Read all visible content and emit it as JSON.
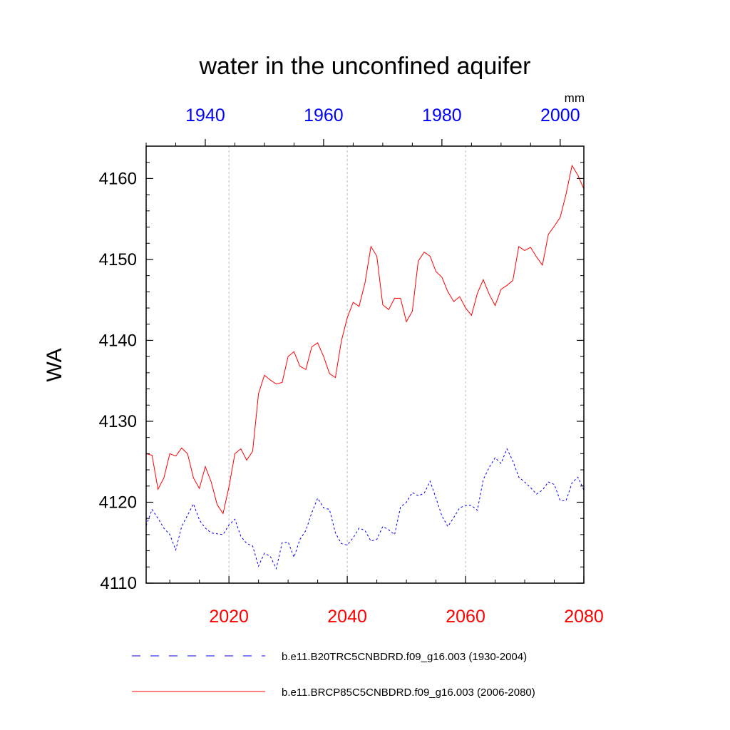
{
  "chart_data": {
    "type": "line",
    "title": "water in the unconfined aquifer",
    "ylabel": "WA",
    "units": "mm",
    "ylim": [
      4110,
      4164
    ],
    "yticks": [
      "4110",
      "4120",
      "4130",
      "4140",
      "4150",
      "4160"
    ],
    "x_bottom": {
      "range": [
        2006,
        2080
      ],
      "ticks": [
        "2020",
        "2040",
        "2060",
        "2080"
      ],
      "color": "#ff0000"
    },
    "x_top": {
      "range": [
        1930,
        2004
      ],
      "ticks": [
        "1940",
        "1960",
        "1980",
        "2000"
      ],
      "color": "#0000ff"
    },
    "grid_x_years_bottom": [
      2020,
      2040,
      2060
    ],
    "series": [
      {
        "name": "b.e11.B20TRC5CNBDRD.f09_g16.003 (1930-2004)",
        "color": "#0000ff",
        "dash": "dashed",
        "axis": "top",
        "x": [
          1930,
          1931,
          1932,
          1933,
          1934,
          1935,
          1936,
          1937,
          1938,
          1939,
          1940,
          1941,
          1942,
          1943,
          1944,
          1945,
          1946,
          1947,
          1948,
          1949,
          1950,
          1951,
          1952,
          1953,
          1954,
          1955,
          1956,
          1957,
          1958,
          1959,
          1960,
          1961,
          1962,
          1963,
          1964,
          1965,
          1966,
          1967,
          1968,
          1969,
          1970,
          1971,
          1972,
          1973,
          1974,
          1975,
          1976,
          1977,
          1978,
          1979,
          1980,
          1981,
          1982,
          1983,
          1984,
          1985,
          1986,
          1987,
          1988,
          1989,
          1990,
          1991,
          1992,
          1993,
          1994,
          1995,
          1996,
          1997,
          1998,
          1999,
          2000,
          2001,
          2002,
          2003,
          2004
        ],
        "values": [
          4117.1,
          4119.1,
          4118.0,
          4116.8,
          4116.0,
          4114.1,
          4117.0,
          4118.4,
          4119.8,
          4117.8,
          4116.8,
          4116.2,
          4116.1,
          4116.0,
          4117.2,
          4117.9,
          4115.8,
          4114.9,
          4114.6,
          4112.1,
          4113.7,
          4113.3,
          4111.8,
          4115.0,
          4115.1,
          4113.2,
          4115.4,
          4116.5,
          4118.7,
          4120.5,
          4119.3,
          4119.1,
          4116.2,
          4114.9,
          4114.7,
          4115.6,
          4116.8,
          4116.5,
          4115.2,
          4115.4,
          4117.0,
          4116.6,
          4116.0,
          4119.4,
          4120.0,
          4121.2,
          4120.8,
          4121.1,
          4122.6,
          4120.5,
          4118.3,
          4117.0,
          4118.1,
          4119.3,
          4119.6,
          4119.6,
          4119.0,
          4122.8,
          4124.3,
          4125.5,
          4124.8,
          4126.6,
          4125.1,
          4123.1,
          4122.5,
          4121.8,
          4121.0,
          4121.5,
          4122.5,
          4122.2,
          4120.2,
          4120.2,
          4122.4,
          4123.1,
          4121.5
        ]
      },
      {
        "name": "b.e11.BRCP85C5CNBDRD.f09_g16.003 (2006-2080)",
        "color": "#ff0000",
        "dash": "solid",
        "axis": "bottom",
        "x": [
          2006,
          2007,
          2008,
          2009,
          2010,
          2011,
          2012,
          2013,
          2014,
          2015,
          2016,
          2017,
          2018,
          2019,
          2020,
          2021,
          2022,
          2023,
          2024,
          2025,
          2026,
          2027,
          2028,
          2029,
          2030,
          2031,
          2032,
          2033,
          2034,
          2035,
          2036,
          2037,
          2038,
          2039,
          2040,
          2041,
          2042,
          2043,
          2044,
          2045,
          2046,
          2047,
          2048,
          2049,
          2050,
          2051,
          2052,
          2053,
          2054,
          2055,
          2056,
          2057,
          2058,
          2059,
          2060,
          2061,
          2062,
          2063,
          2064,
          2065,
          2066,
          2067,
          2068,
          2069,
          2070,
          2071,
          2072,
          2073,
          2074,
          2075,
          2076,
          2077,
          2078,
          2079,
          2080
        ],
        "values": [
          4126.0,
          4125.8,
          4121.6,
          4123.0,
          4126.0,
          4125.7,
          4126.7,
          4126.0,
          4123.0,
          4121.7,
          4124.4,
          4122.5,
          4119.7,
          4118.6,
          4121.9,
          4126.0,
          4126.6,
          4125.2,
          4126.3,
          4133.4,
          4135.7,
          4135.1,
          4134.6,
          4134.8,
          4138.0,
          4138.6,
          4136.8,
          4136.4,
          4139.2,
          4139.7,
          4138.0,
          4135.9,
          4135.4,
          4139.9,
          4142.8,
          4144.7,
          4144.2,
          4147.1,
          4151.6,
          4150.4,
          4144.4,
          4143.8,
          4145.2,
          4145.2,
          4142.3,
          4143.6,
          4149.8,
          4150.9,
          4150.4,
          4148.5,
          4147.8,
          4146.0,
          4144.8,
          4145.4,
          4144.0,
          4143.1,
          4145.8,
          4147.5,
          4145.7,
          4144.3,
          4146.3,
          4146.8,
          4147.4,
          4151.6,
          4151.1,
          4151.5,
          4150.3,
          4149.3,
          4153.1,
          4154.1,
          4155.2,
          4158.1,
          4161.6,
          4160.4,
          4158.7
        ]
      }
    ]
  }
}
